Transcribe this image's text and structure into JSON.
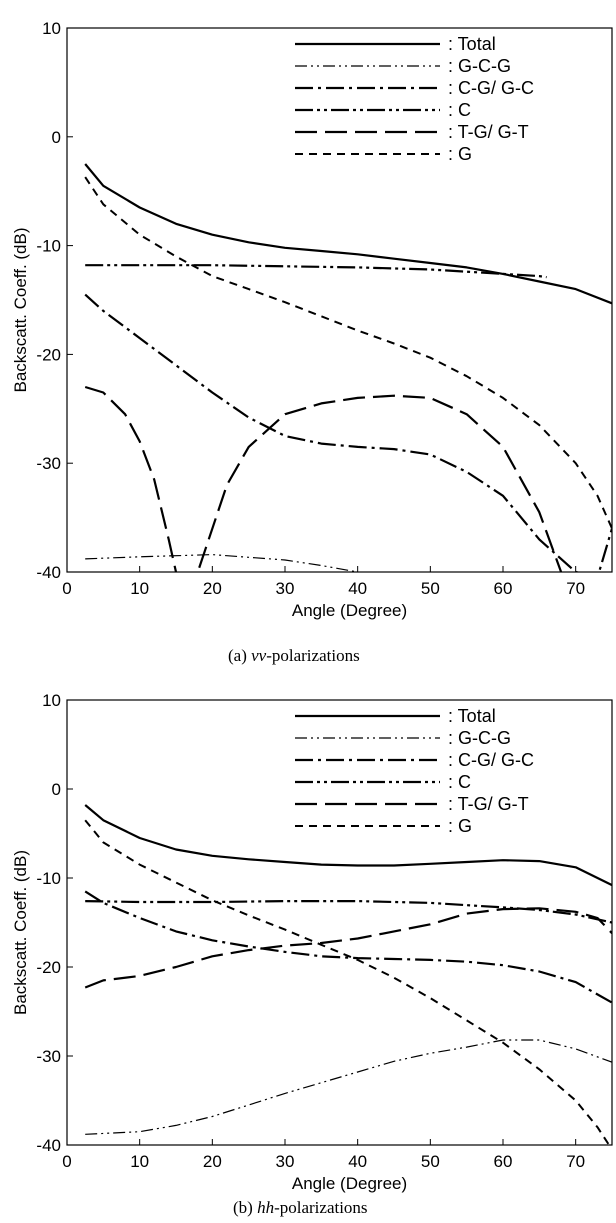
{
  "chart_data": [
    {
      "type": "line",
      "caption_label": "(a)",
      "caption_italic": "vv",
      "caption_rest": "-polarizations",
      "xlabel": "Angle (Degree)",
      "ylabel": "Backscatt. Coeff. (dB)",
      "xlim": [
        0,
        75
      ],
      "ylim": [
        -40,
        10
      ],
      "xticks": [
        0,
        10,
        20,
        30,
        40,
        50,
        60,
        70
      ],
      "yticks": [
        10,
        0,
        -10,
        -20,
        -30,
        -40
      ],
      "legend_position": "top-right",
      "series": [
        {
          "name": "Total",
          "style": "solid",
          "x": [
            2.5,
            5,
            10,
            15,
            20,
            25,
            30,
            35,
            40,
            45,
            50,
            55,
            60,
            65,
            70,
            75
          ],
          "y": [
            -2.5,
            -4.5,
            -6.5,
            -8,
            -9,
            -9.7,
            -10.2,
            -10.5,
            -10.8,
            -11.2,
            -11.6,
            -12,
            -12.6,
            -13.3,
            -14,
            -15.3
          ]
        },
        {
          "name": "G-C-G",
          "style": "dashdotdot-thin",
          "x": [
            2.5,
            10,
            20,
            30,
            35,
            40
          ],
          "y": [
            -38.8,
            -38.6,
            -38.4,
            -38.9,
            -39.4,
            -40
          ]
        },
        {
          "name": "C-G/ G-C",
          "style": "dashdot-thick",
          "x": [
            2.5,
            5,
            10,
            15,
            20,
            25,
            30,
            35,
            40,
            45,
            50,
            55,
            60,
            65,
            70,
            73,
            75
          ],
          "y": [
            -14.5,
            -16,
            -18.5,
            -21,
            -23.5,
            -25.8,
            -27.5,
            -28.2,
            -28.5,
            -28.7,
            -29.2,
            -30.8,
            -33,
            -37,
            -40,
            -40.5,
            -36
          ]
        },
        {
          "name": "C",
          "style": "dashdotdot-thick",
          "x": [
            2.5,
            10,
            20,
            30,
            40,
            50,
            55,
            60,
            65,
            66
          ],
          "y": [
            -11.8,
            -11.8,
            -11.8,
            -11.9,
            -12,
            -12.2,
            -12.4,
            -12.6,
            -12.8,
            -12.9
          ]
        },
        {
          "name": "T-G/ G-T",
          "style": "longdash",
          "x": [
            2.5,
            5,
            8,
            10,
            12,
            14,
            15,
            17,
            19,
            22,
            25,
            30,
            35,
            40,
            45,
            50,
            55,
            60,
            65,
            68
          ],
          "y": [
            -23,
            -23.5,
            -25.5,
            -28,
            -31.5,
            -37,
            -40,
            -42,
            -38,
            -32,
            -28.5,
            -25.5,
            -24.5,
            -24,
            -23.8,
            -24,
            -25.5,
            -28.5,
            -34.5,
            -40
          ]
        },
        {
          "name": "G",
          "style": "dashed",
          "x": [
            2.5,
            5,
            10,
            15,
            20,
            25,
            30,
            35,
            40,
            45,
            50,
            55,
            60,
            65,
            70,
            73,
            75
          ],
          "y": [
            -3.7,
            -6.2,
            -9,
            -11,
            -12.8,
            -14,
            -15.2,
            -16.5,
            -17.8,
            -19,
            -20.3,
            -22,
            -24,
            -26.5,
            -30,
            -33,
            -36
          ]
        }
      ]
    },
    {
      "type": "line",
      "caption_label": "(b)",
      "caption_italic": "hh",
      "caption_rest": "-polarizations",
      "xlabel": "Angle (Degree)",
      "ylabel": "Backscatt. Coeff. (dB)",
      "xlim": [
        0,
        75
      ],
      "ylim": [
        -40,
        10
      ],
      "xticks": [
        0,
        10,
        20,
        30,
        40,
        50,
        60,
        70
      ],
      "yticks": [
        10,
        0,
        -10,
        -20,
        -30,
        -40
      ],
      "legend_position": "top-right",
      "series": [
        {
          "name": "Total",
          "style": "solid",
          "x": [
            2.5,
            5,
            10,
            15,
            20,
            25,
            30,
            35,
            40,
            45,
            50,
            55,
            60,
            65,
            70,
            75
          ],
          "y": [
            -1.8,
            -3.5,
            -5.5,
            -6.8,
            -7.5,
            -7.9,
            -8.2,
            -8.5,
            -8.6,
            -8.6,
            -8.4,
            -8.2,
            -8,
            -8.1,
            -8.8,
            -10.8
          ]
        },
        {
          "name": "G-C-G",
          "style": "dashdotdot-thin",
          "x": [
            2.5,
            10,
            15,
            20,
            25,
            30,
            35,
            40,
            45,
            50,
            55,
            60,
            65,
            70,
            75
          ],
          "y": [
            -38.8,
            -38.5,
            -37.8,
            -36.8,
            -35.5,
            -34.2,
            -33,
            -31.8,
            -30.6,
            -29.7,
            -29,
            -28.2,
            -28.2,
            -29.2,
            -30.7
          ]
        },
        {
          "name": "C-G/ G-C",
          "style": "dashdot-thick",
          "x": [
            2.5,
            5,
            10,
            15,
            20,
            25,
            30,
            35,
            40,
            45,
            50,
            55,
            60,
            65,
            70,
            75
          ],
          "y": [
            -11.5,
            -12.8,
            -14.5,
            -16,
            -17,
            -17.7,
            -18.3,
            -18.8,
            -19,
            -19.1,
            -19.2,
            -19.4,
            -19.8,
            -20.5,
            -21.7,
            -24
          ]
        },
        {
          "name": "C",
          "style": "dashdotdot-thick",
          "x": [
            2.5,
            10,
            20,
            30,
            40,
            50,
            60,
            65,
            70,
            75
          ],
          "y": [
            -12.6,
            -12.7,
            -12.7,
            -12.6,
            -12.6,
            -12.8,
            -13.3,
            -13.6,
            -14.1,
            -15
          ]
        },
        {
          "name": "T-G/ G-T",
          "style": "longdash",
          "x": [
            2.5,
            5,
            10,
            15,
            20,
            25,
            30,
            35,
            40,
            45,
            50,
            55,
            60,
            65,
            70,
            73,
            75
          ],
          "y": [
            -22.3,
            -21.5,
            -21,
            -20,
            -18.8,
            -18.1,
            -17.6,
            -17.3,
            -16.8,
            -16,
            -15.2,
            -14,
            -13.5,
            -13.4,
            -13.8,
            -14.5,
            -16.2
          ]
        },
        {
          "name": "G",
          "style": "dashed",
          "x": [
            2.5,
            5,
            10,
            15,
            20,
            25,
            30,
            35,
            40,
            45,
            50,
            55,
            60,
            65,
            70,
            73,
            75
          ],
          "y": [
            -3.5,
            -6,
            -8.5,
            -10.5,
            -12.5,
            -14.2,
            -15.8,
            -17.5,
            -19.2,
            -21.2,
            -23.5,
            -26,
            -28.5,
            -31.5,
            -35,
            -38,
            -40.5
          ]
        }
      ]
    }
  ]
}
